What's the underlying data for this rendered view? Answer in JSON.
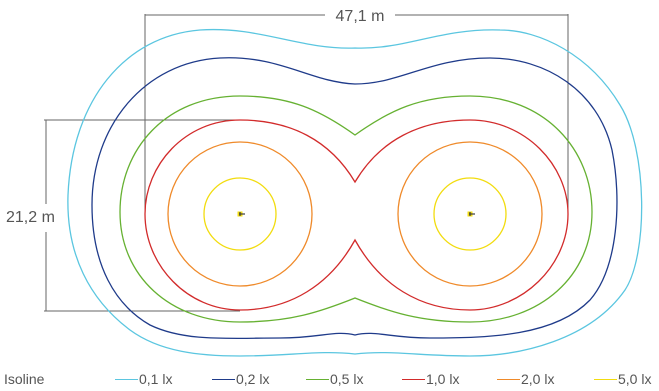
{
  "dimensions": {
    "width_label": "47,1 m",
    "height_label": "21,2 m"
  },
  "legend": {
    "title": "Isoline",
    "items": [
      {
        "label": "0,1 lx",
        "color": "#5bc6e0"
      },
      {
        "label": "0,2 lx",
        "color": "#1f3b8a"
      },
      {
        "label": "0,5 lx",
        "color": "#66b132"
      },
      {
        "label": "1,0 lx",
        "color": "#d22b2b"
      },
      {
        "label": "2,0 lx",
        "color": "#ef8a2a"
      },
      {
        "label": "5,0 lx",
        "color": "#f2dc0f"
      }
    ]
  },
  "luminaires": {
    "count": 2,
    "marker_color": "#3a3a3a"
  }
}
